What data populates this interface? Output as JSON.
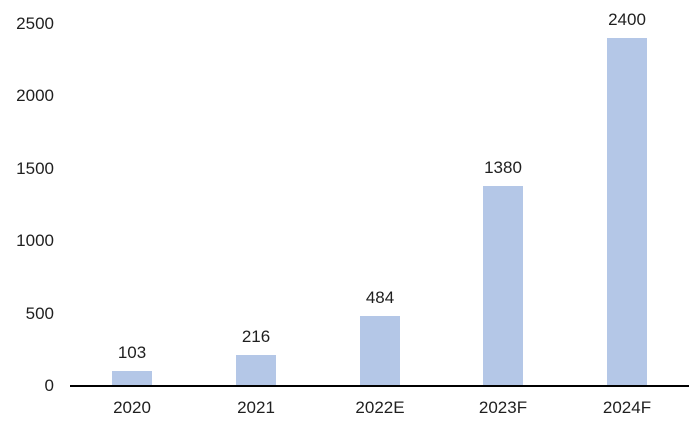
{
  "chart_data": {
    "type": "bar",
    "categories": [
      "2020",
      "2021",
      "2022E",
      "2023F",
      "2024F"
    ],
    "values": [
      103,
      216,
      484,
      1380,
      2400
    ],
    "data_labels": [
      "103",
      "216",
      "484",
      "1380",
      "2400"
    ],
    "title": "",
    "xlabel": "",
    "ylabel": "",
    "ylim": [
      0,
      2500
    ],
    "yticks": [
      0,
      500,
      1000,
      1500,
      2000,
      2500
    ],
    "ytick_labels": [
      "0",
      "500",
      "1000",
      "1500",
      "2000",
      "2500"
    ],
    "grid": false,
    "legend": null,
    "bar_color": "#b4c7e7",
    "axis_line_color": "#000000",
    "text_color": "#1f1f1f"
  }
}
